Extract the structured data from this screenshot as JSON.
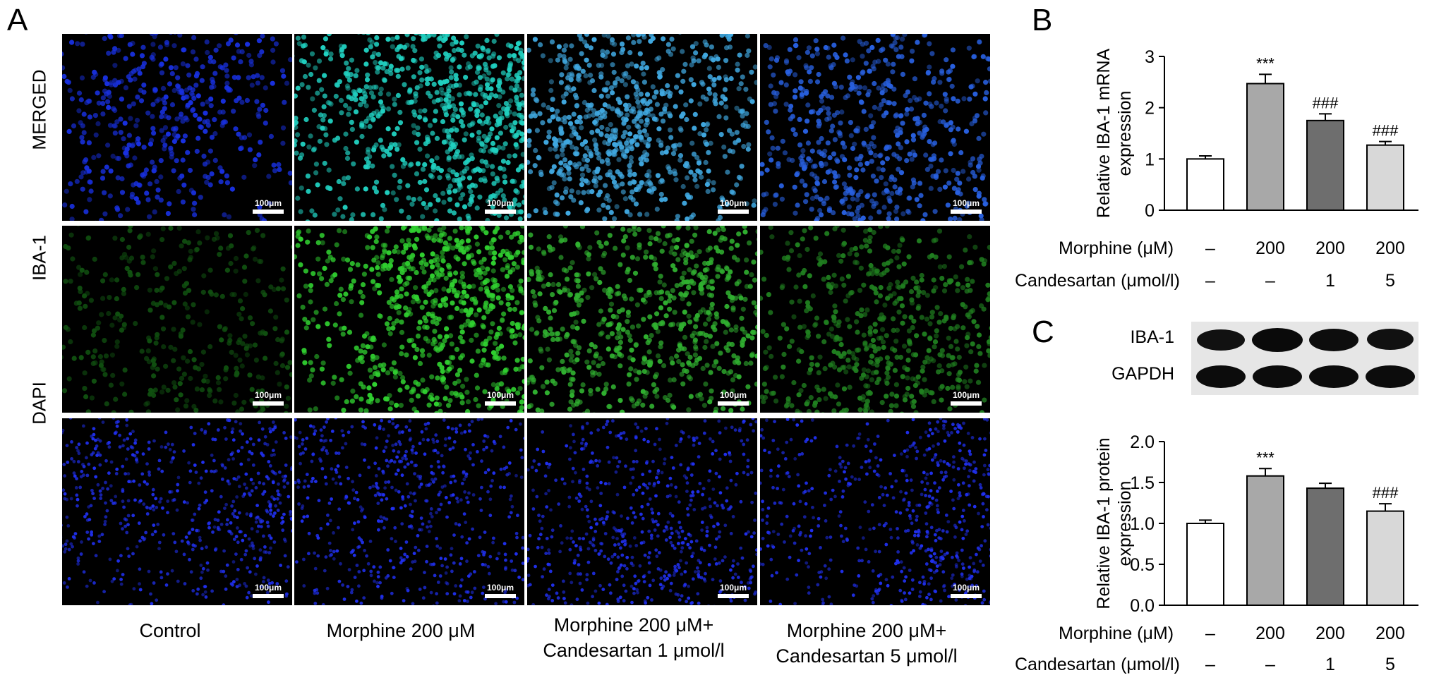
{
  "panels": {
    "A": "A",
    "B": "B",
    "C": "C"
  },
  "panel_a": {
    "rows": [
      "MERGED",
      "IBA-1",
      "DAPI"
    ],
    "scale_bar_label": "100μm",
    "columns": [
      {
        "line1": "Control",
        "line2": ""
      },
      {
        "line1": "Morphine 200 μM",
        "line2": ""
      },
      {
        "line1": "Morphine 200 μM+",
        "line2": "Candesartan 1 μmol/l"
      },
      {
        "line1": "Morphine 200 μM+",
        "line2": "Candesartan 5 μmol/l"
      }
    ],
    "intensity_note_channels": {
      "merged_colors": [
        "#1830e0",
        "#20d0c0",
        "#40a8e0",
        "#2860e0"
      ],
      "iba1_colors": [
        "#105010",
        "#30d030",
        "#30b030",
        "#208020"
      ],
      "dapi_color": "#2030f0"
    }
  },
  "blot": {
    "labels": [
      "IBA-1",
      "GAPDH"
    ]
  },
  "treatments": {
    "morphine_label": "Morphine (μM)",
    "candesartan_label": "Candesartan (μmol/l)",
    "morphine": [
      "–",
      "200",
      "200",
      "200"
    ],
    "candesartan": [
      "–",
      "–",
      "1",
      "5"
    ]
  },
  "chart_data": [
    {
      "type": "bar",
      "panel": "B",
      "categories": [
        "Control",
        "Morphine 200",
        "Morphine 200 + Candesartan 1",
        "Morphine 200 + Candesartan 5"
      ],
      "values": [
        1.0,
        2.47,
        1.75,
        1.27
      ],
      "errors": [
        0.06,
        0.18,
        0.13,
        0.07
      ],
      "significance": [
        "",
        "***",
        "###",
        "###"
      ],
      "colors": [
        "#ffffff",
        "#a8a8a8",
        "#6e6e6e",
        "#d8d8d8"
      ],
      "ylabel_line1": "Relative IBA-1 mRNA",
      "ylabel_line2": "expression",
      "ylim": [
        0,
        3
      ],
      "yticks": [
        "0",
        "1",
        "2",
        "3"
      ]
    },
    {
      "type": "bar",
      "panel": "C",
      "categories": [
        "Control",
        "Morphine 200",
        "Morphine 200 + Candesartan 1",
        "Morphine 200 + Candesartan 5"
      ],
      "values": [
        1.0,
        1.58,
        1.43,
        1.15
      ],
      "errors": [
        0.04,
        0.09,
        0.06,
        0.09
      ],
      "significance": [
        "",
        "***",
        "",
        "###"
      ],
      "colors": [
        "#ffffff",
        "#a8a8a8",
        "#6e6e6e",
        "#d8d8d8"
      ],
      "ylabel_line1": "Relative IBA-1 protein",
      "ylabel_line2": "expression",
      "ylim": [
        0,
        2.0
      ],
      "yticks": [
        "0.0",
        "0.5",
        "1.0",
        "1.5",
        "2.0"
      ]
    }
  ]
}
